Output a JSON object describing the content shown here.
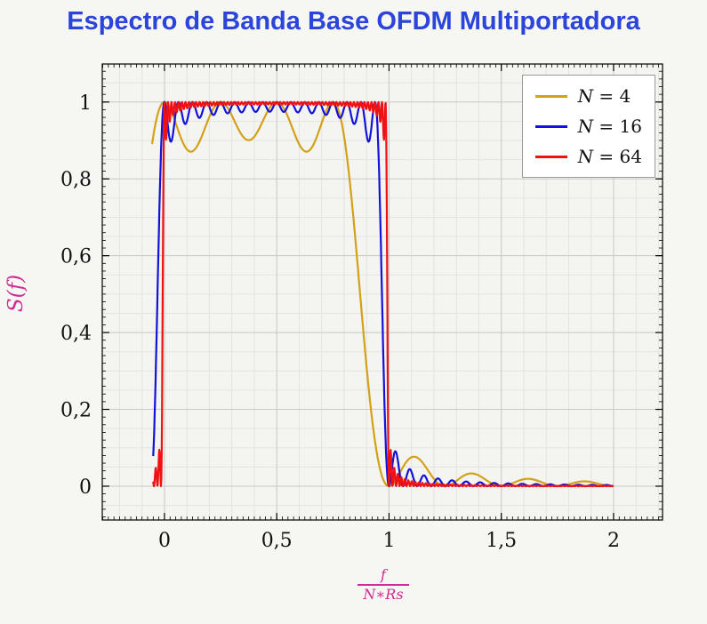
{
  "page": {
    "background": "#f6f6f3"
  },
  "chart_data": {
    "type": "line",
    "title": "Espectro de Banda Base OFDM Multiportadora",
    "ylabel": "S(f)",
    "xlabel": {
      "numerator": "f",
      "denominator": "N∗Rs"
    },
    "xlim": [
      -0.277,
      2.218
    ],
    "ylim": [
      -0.088,
      1.099
    ],
    "x_ticks": [
      {
        "value": 0,
        "label": "0"
      },
      {
        "value": 0.5,
        "label": "0,5"
      },
      {
        "value": 1,
        "label": "1"
      },
      {
        "value": 1.5,
        "label": "1,5"
      },
      {
        "value": 2,
        "label": "2"
      }
    ],
    "y_ticks": [
      {
        "value": 0,
        "label": "0"
      },
      {
        "value": 0.2,
        "label": "0,2"
      },
      {
        "value": 0.4,
        "label": "0,4"
      },
      {
        "value": 0.6,
        "label": "0,6"
      },
      {
        "value": 0.8,
        "label": "0,8"
      },
      {
        "value": 1,
        "label": "1"
      }
    ],
    "grid": "both",
    "x_minor_grid_step": 0.1,
    "y_minor_grid_step": 0.05,
    "x_minor_tick_step": 0.025,
    "y_minor_tick_step": 0.02,
    "legend": {
      "position": "top-right",
      "items": [
        {
          "var": "N",
          "eq": "=",
          "value": "4",
          "color": "#d3a118"
        },
        {
          "var": "N",
          "eq": "=",
          "value": "16",
          "color": "#1212d9"
        },
        {
          "var": "N",
          "eq": "=",
          "value": "64",
          "color": "#ef1212"
        }
      ]
    },
    "series": [
      {
        "name": "N = 4",
        "N": 4,
        "color": "#d3a118",
        "model": "S(x) = sum_{k=0}^{N-1} sinc^2(N*x - k)",
        "x_start": -0.055,
        "x_end": 2.0
      },
      {
        "name": "N = 16",
        "N": 16,
        "color": "#1212d9",
        "model": "S(x) = sum_{k=0}^{N-1} sinc^2(N*x - k)",
        "x_start": -0.05,
        "x_end": 2.0
      },
      {
        "name": "N = 64",
        "N": 64,
        "color": "#ef1212",
        "model": "S(x) = sum_{k=0}^{N-1} sinc^2(N*x - k)",
        "x_start": -0.05,
        "x_end": 2.0
      }
    ],
    "colors": {
      "title": "#2b44da",
      "axis_label": "#d02a94",
      "tick_label": "#111111",
      "frame": "#000000",
      "grid_major": "#c9c9c9",
      "grid_minor": "#e3e3e0",
      "plot_bg": "#f4f4f1"
    }
  }
}
